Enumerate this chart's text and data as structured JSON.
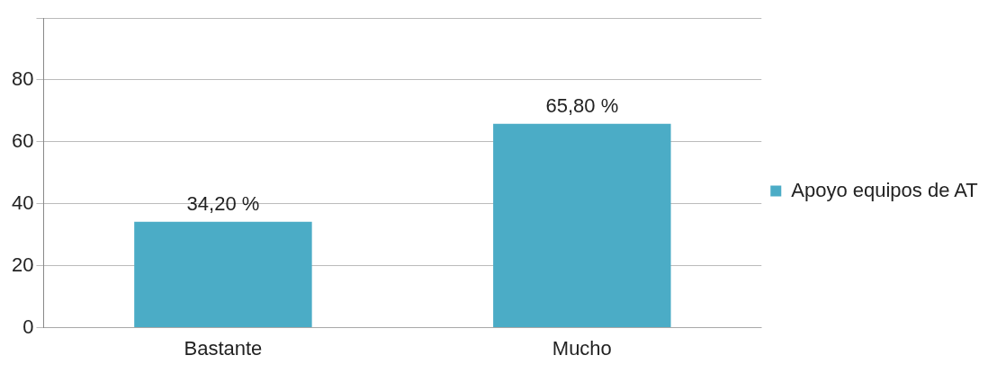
{
  "chart_data": {
    "type": "bar",
    "categories": [
      "Bastante",
      "Mucho"
    ],
    "series": [
      {
        "name": "Apoyo equipos de AT",
        "color": "#4bacc6",
        "values": [
          34.2,
          65.8
        ],
        "value_labels": [
          "34,20 %",
          "65,80 %"
        ]
      }
    ],
    "ylim": [
      0,
      100
    ],
    "yticks": [
      0,
      20,
      40,
      60,
      80,
      {
        "value": 100,
        "label": null
      }
    ],
    "grid": "y",
    "legend": "right"
  }
}
